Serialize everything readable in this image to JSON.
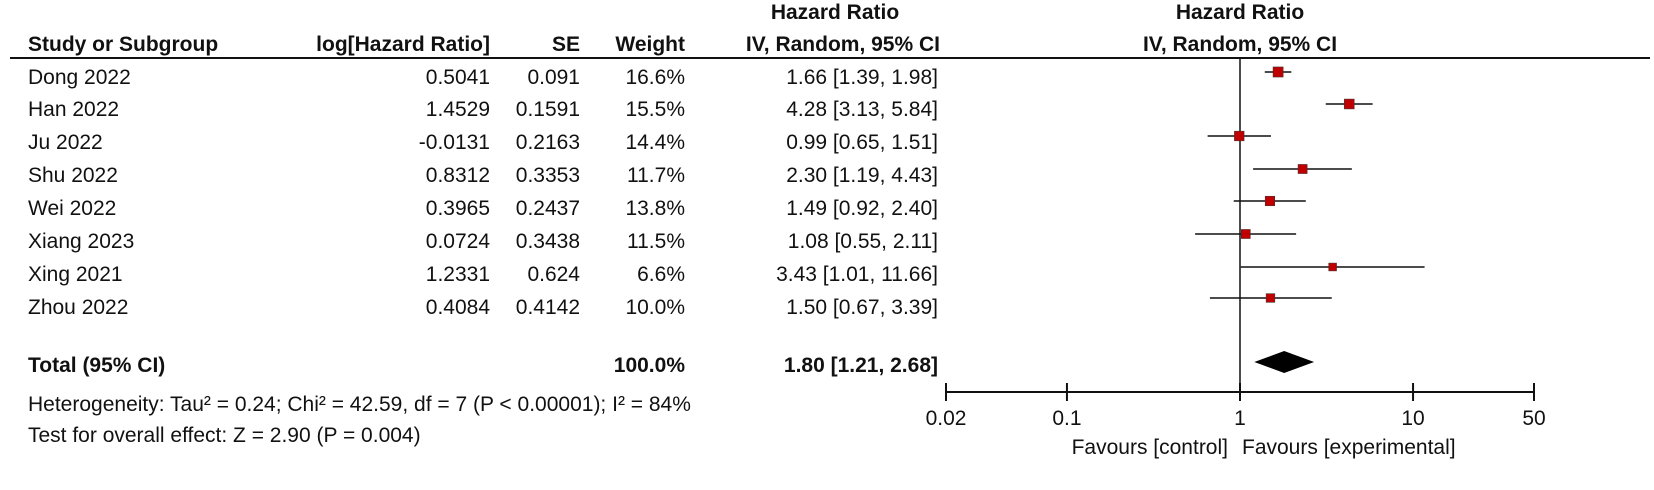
{
  "headers": {
    "group_hr_left": "Hazard Ratio",
    "group_hr_right": "Hazard Ratio",
    "study": "Study or Subgroup",
    "loghr": "log[Hazard Ratio]",
    "se": "SE",
    "weight": "Weight",
    "method_left": "IV, Random, 95% CI",
    "method_right": "IV, Random, 95% CI"
  },
  "studies": [
    {
      "name": "Dong 2022",
      "loghr": "0.5041",
      "se": "0.091",
      "weight": "16.6%",
      "ci_text": "1.66 [1.39, 1.98]"
    },
    {
      "name": "Han 2022",
      "loghr": "1.4529",
      "se": "0.1591",
      "weight": "15.5%",
      "ci_text": "4.28 [3.13, 5.84]"
    },
    {
      "name": "Ju 2022",
      "loghr": "-0.0131",
      "se": "0.2163",
      "weight": "14.4%",
      "ci_text": "0.99 [0.65, 1.51]"
    },
    {
      "name": "Shu 2022",
      "loghr": "0.8312",
      "se": "0.3353",
      "weight": "11.7%",
      "ci_text": "2.30 [1.19, 4.43]"
    },
    {
      "name": "Wei 2022",
      "loghr": "0.3965",
      "se": "0.2437",
      "weight": "13.8%",
      "ci_text": "1.49 [0.92, 2.40]"
    },
    {
      "name": "Xiang 2023",
      "loghr": "0.0724",
      "se": "0.3438",
      "weight": "11.5%",
      "ci_text": "1.08 [0.55, 2.11]"
    },
    {
      "name": "Xing 2021",
      "loghr": "1.2331",
      "se": "0.624",
      "weight": "6.6%",
      "ci_text": "3.43 [1.01, 11.66]"
    },
    {
      "name": "Zhou 2022",
      "loghr": "0.4084",
      "se": "0.4142",
      "weight": "10.0%",
      "ci_text": "1.50 [0.67, 3.39]"
    }
  ],
  "total": {
    "label": "Total (95% CI)",
    "weight": "100.0%",
    "ci_text": "1.80 [1.21, 2.68]"
  },
  "heterogeneity": "Heterogeneity: Tau² = 0.24; Chi² = 42.59, df = 7 (P < 0.00001); I² = 84%",
  "overall_effect": "Test for overall effect: Z = 2.90 (P = 0.004)",
  "axis": {
    "favours_left": "Favours [control]",
    "favours_right": "Favours [experimental]"
  },
  "colors": {
    "marker": "#c00000",
    "diamond": "#000000"
  },
  "chart_data": {
    "type": "forest",
    "scale": "log",
    "xlim": [
      0.02,
      50
    ],
    "ticks": [
      {
        "value": 0.02,
        "label": "0.02"
      },
      {
        "value": 0.1,
        "label": "0.1"
      },
      {
        "value": 1,
        "label": "1"
      },
      {
        "value": 10,
        "label": "10"
      },
      {
        "value": 50,
        "label": "50"
      }
    ],
    "points": [
      {
        "hr": 1.66,
        "lo": 1.39,
        "hi": 1.98,
        "weight": 16.6
      },
      {
        "hr": 4.28,
        "lo": 3.13,
        "hi": 5.84,
        "weight": 15.5
      },
      {
        "hr": 0.99,
        "lo": 0.65,
        "hi": 1.51,
        "weight": 14.4
      },
      {
        "hr": 2.3,
        "lo": 1.19,
        "hi": 4.43,
        "weight": 11.7
      },
      {
        "hr": 1.49,
        "lo": 0.92,
        "hi": 2.4,
        "weight": 13.8
      },
      {
        "hr": 1.08,
        "lo": 0.55,
        "hi": 2.11,
        "weight": 11.5
      },
      {
        "hr": 3.43,
        "lo": 1.01,
        "hi": 11.66,
        "weight": 6.6
      },
      {
        "hr": 1.5,
        "lo": 0.67,
        "hi": 3.39,
        "weight": 10.0
      }
    ],
    "pooled": {
      "hr": 1.8,
      "lo": 1.21,
      "hi": 2.68
    }
  }
}
